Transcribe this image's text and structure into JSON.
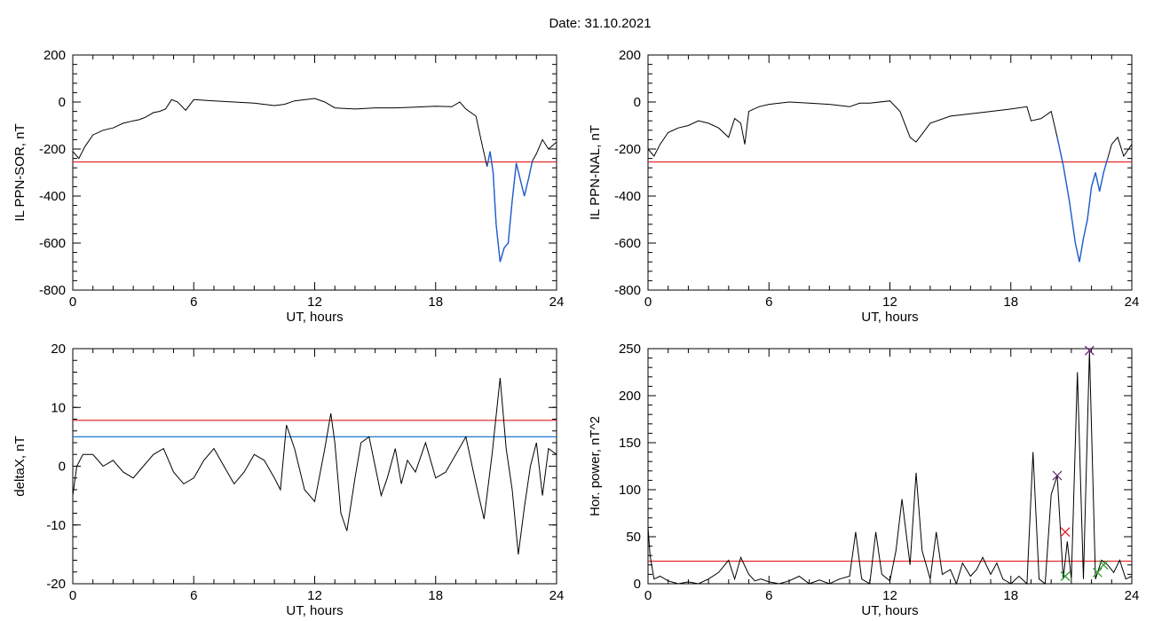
{
  "header": {
    "date_label": "Date:  31.10.2021"
  },
  "colors": {
    "trace": "#000000",
    "threshold": "#e31a1c",
    "threshold2": "#1f77d0",
    "substorm": "#1f5fd0",
    "marker_major": "#6b2f7a",
    "marker_minor": "#e31a1c",
    "marker_green": "#2ca02c"
  },
  "chart_data": [
    {
      "id": "ppn-sor",
      "type": "line",
      "xlabel": "UT, hours",
      "ylabel": "IL PPN-SOR, nT",
      "xlim": [
        0,
        24
      ],
      "ylim": [
        -800,
        200
      ],
      "xticks": [
        0,
        6,
        12,
        18,
        24
      ],
      "yticks": [
        -800,
        -600,
        -400,
        -200,
        0,
        200
      ],
      "threshold": -255,
      "series": [
        {
          "x": [
            0,
            0.3,
            0.6,
            1.0,
            1.5,
            2.0,
            2.5,
            3.0,
            3.3,
            3.6,
            4.0,
            4.3,
            4.6,
            4.9,
            5.2,
            5.6,
            6,
            7,
            8,
            9,
            10,
            10.5,
            11,
            12,
            12.5,
            13,
            14,
            15,
            16,
            17,
            18,
            18.8,
            19.2,
            19.5,
            20.0,
            20.3,
            20.55,
            20.7,
            20.85,
            21.0,
            21.2,
            21.4,
            21.6,
            21.8,
            22.0,
            22.2,
            22.4,
            22.6,
            22.8,
            23.0,
            23.3,
            23.6,
            24
          ],
          "values": [
            -210,
            -240,
            -190,
            -140,
            -120,
            -110,
            -90,
            -80,
            -75,
            -65,
            -45,
            -40,
            -30,
            10,
            0,
            -35,
            10,
            5,
            0,
            -5,
            -15,
            -10,
            5,
            15,
            0,
            -25,
            -30,
            -25,
            -25,
            -22,
            -18,
            -20,
            0,
            -30,
            -60,
            -180,
            -275,
            -210,
            -300,
            -520,
            -680,
            -620,
            -600,
            -420,
            -260,
            -330,
            -400,
            -330,
            -250,
            -220,
            -160,
            -200,
            -170
          ]
        }
      ],
      "highlight": {
        "from": 20.55,
        "to": 22.8
      }
    },
    {
      "id": "ppn-nal",
      "type": "line",
      "xlabel": "UT, hours",
      "ylabel": "IL PPN-NAL, nT",
      "xlim": [
        0,
        24
      ],
      "ylim": [
        -800,
        200
      ],
      "xticks": [
        0,
        6,
        12,
        18,
        24
      ],
      "yticks": [
        -800,
        -600,
        -400,
        -200,
        0,
        200
      ],
      "threshold": -255,
      "series": [
        {
          "x": [
            0,
            0.3,
            0.6,
            1.0,
            1.5,
            2.0,
            2.5,
            3.0,
            3.5,
            4.0,
            4.3,
            4.6,
            4.8,
            5.0,
            5.5,
            6,
            7,
            8,
            9,
            10,
            10.5,
            11,
            12,
            12.5,
            13.0,
            13.3,
            14,
            15,
            16,
            17,
            18,
            18.8,
            19.0,
            19.5,
            20.0,
            20.3,
            20.6,
            20.9,
            21.2,
            21.4,
            21.6,
            21.8,
            22.0,
            22.2,
            22.4,
            22.6,
            22.8,
            23.0,
            23.3,
            23.6,
            24
          ],
          "values": [
            -200,
            -230,
            -180,
            -130,
            -110,
            -100,
            -80,
            -90,
            -110,
            -150,
            -70,
            -90,
            -180,
            -40,
            -20,
            -10,
            0,
            -5,
            -10,
            -20,
            -5,
            -5,
            5,
            -40,
            -150,
            -170,
            -90,
            -60,
            -50,
            -40,
            -30,
            -20,
            -80,
            -70,
            -40,
            -150,
            -270,
            -420,
            -600,
            -680,
            -580,
            -500,
            -360,
            -300,
            -380,
            -300,
            -240,
            -180,
            -150,
            -230,
            -180
          ]
        }
      ],
      "highlight": {
        "from": 20.3,
        "to": 22.8
      }
    },
    {
      "id": "deltax",
      "type": "line",
      "xlabel": "UT, hours",
      "ylabel": "deltaX, nT",
      "xlim": [
        0,
        24
      ],
      "ylim": [
        -20,
        20
      ],
      "xticks": [
        0,
        6,
        12,
        18,
        24
      ],
      "yticks": [
        -20,
        -10,
        0,
        10,
        20
      ],
      "threshold": 7.8,
      "threshold2": 5.0,
      "series": [
        {
          "x": [
            0,
            0.2,
            0.5,
            1.0,
            1.5,
            2.0,
            2.5,
            3.0,
            3.5,
            4.0,
            4.5,
            5.0,
            5.5,
            6.0,
            6.5,
            7.0,
            7.5,
            8.0,
            8.5,
            9.0,
            9.5,
            10.0,
            10.3,
            10.6,
            11.0,
            11.5,
            12.0,
            12.5,
            12.8,
            13.0,
            13.3,
            13.6,
            14.0,
            14.3,
            14.7,
            15.0,
            15.3,
            15.6,
            16.0,
            16.3,
            16.6,
            17.0,
            17.5,
            18.0,
            18.5,
            19.0,
            19.5,
            20.0,
            20.4,
            20.8,
            21.2,
            21.5,
            21.8,
            22.1,
            22.4,
            22.7,
            23.0,
            23.3,
            23.6,
            24
          ],
          "values": [
            -5,
            0,
            2,
            2,
            0,
            1,
            -1,
            -2,
            0,
            2,
            3,
            -1,
            -3,
            -2,
            1,
            3,
            0,
            -3,
            -1,
            2,
            1,
            -2,
            -4,
            7,
            3,
            -4,
            -6,
            3,
            9,
            4,
            -8,
            -11,
            -2,
            4,
            5,
            0,
            -5,
            -2,
            3,
            -3,
            1,
            -1,
            4,
            -2,
            -1,
            2,
            5,
            -3,
            -9,
            2,
            15,
            3,
            -4,
            -15,
            -7,
            0,
            4,
            -5,
            3,
            2
          ]
        }
      ]
    },
    {
      "id": "hor-power",
      "type": "line",
      "xlabel": "UT, hours",
      "ylabel": "Hor. power, nT^2",
      "xlim": [
        0,
        24
      ],
      "ylim": [
        0,
        250
      ],
      "xticks": [
        0,
        6,
        12,
        18,
        24
      ],
      "yticks": [
        0,
        50,
        100,
        150,
        200,
        250
      ],
      "threshold": 24,
      "series": [
        {
          "x": [
            0,
            0.1,
            0.3,
            0.6,
            1.0,
            1.5,
            2.0,
            2.5,
            3.0,
            3.5,
            4.0,
            4.3,
            4.6,
            5.0,
            5.3,
            5.6,
            6.0,
            6.5,
            7.0,
            7.5,
            8.0,
            8.5,
            9.0,
            9.5,
            10.0,
            10.3,
            10.6,
            11.0,
            11.3,
            11.6,
            12.0,
            12.3,
            12.6,
            13.0,
            13.3,
            13.6,
            14.0,
            14.3,
            14.6,
            15.0,
            15.3,
            15.6,
            16.0,
            16.3,
            16.6,
            17.0,
            17.3,
            17.6,
            18.0,
            18.4,
            18.8,
            19.1,
            19.4,
            19.7,
            20.0,
            20.3,
            20.6,
            20.8,
            21.0,
            21.3,
            21.6,
            21.9,
            22.2,
            22.5,
            22.8,
            23.1,
            23.4,
            23.7,
            24
          ],
          "values": [
            60,
            30,
            5,
            8,
            3,
            0,
            2,
            0,
            5,
            12,
            25,
            5,
            28,
            10,
            3,
            5,
            2,
            0,
            3,
            8,
            0,
            4,
            0,
            5,
            8,
            55,
            5,
            0,
            55,
            10,
            3,
            35,
            90,
            20,
            118,
            35,
            5,
            55,
            10,
            15,
            0,
            22,
            8,
            15,
            28,
            10,
            22,
            5,
            0,
            8,
            0,
            140,
            5,
            0,
            95,
            115,
            5,
            45,
            5,
            225,
            5,
            248,
            5,
            25,
            20,
            12,
            25,
            5,
            8
          ]
        }
      ],
      "markers": [
        {
          "x": 20.3,
          "y": 115,
          "symbol": "x",
          "color": "marker_major"
        },
        {
          "x": 21.9,
          "y": 248,
          "symbol": "x",
          "color": "marker_major"
        },
        {
          "x": 20.7,
          "y": 55,
          "symbol": "x",
          "color": "marker_minor"
        },
        {
          "x": 20.7,
          "y": 8,
          "symbol": "x",
          "color": "marker_green"
        },
        {
          "x": 22.3,
          "y": 12,
          "symbol": "x",
          "color": "marker_green"
        },
        {
          "x": 22.6,
          "y": 20,
          "symbol": "x",
          "color": "marker_green"
        }
      ]
    }
  ]
}
